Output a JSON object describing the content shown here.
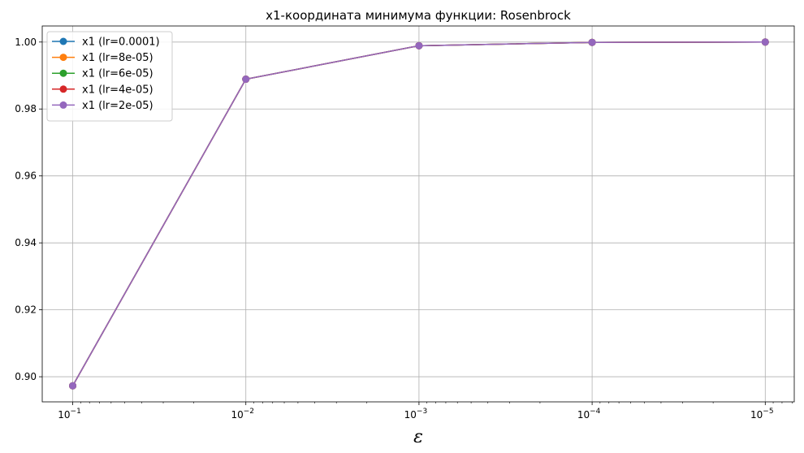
{
  "chart_data": {
    "type": "line",
    "title": "x1-координата минимума функции: Rosenbrock",
    "xlabel": "ε",
    "ylabel": "",
    "x_scale": "log",
    "x_axis_inverted": true,
    "x": [
      0.1,
      0.01,
      0.001,
      0.0001,
      1e-05
    ],
    "xlim": [
      0.15,
      6.8e-06
    ],
    "ylim": [
      0.8925,
      1.0048
    ],
    "x_ticks": [
      {
        "value": 0.1,
        "base": "10",
        "exp": "−1"
      },
      {
        "value": 0.01,
        "base": "10",
        "exp": "−2"
      },
      {
        "value": 0.001,
        "base": "10",
        "exp": "−3"
      },
      {
        "value": 0.0001,
        "base": "10",
        "exp": "−4"
      },
      {
        "value": 1e-05,
        "base": "10",
        "exp": "−5"
      }
    ],
    "y_ticks": [
      {
        "value": 0.9,
        "label": "0.90"
      },
      {
        "value": 0.92,
        "label": "0.92"
      },
      {
        "value": 0.94,
        "label": "0.94"
      },
      {
        "value": 0.96,
        "label": "0.96"
      },
      {
        "value": 0.98,
        "label": "0.98"
      },
      {
        "value": 1.0,
        "label": "1.00"
      }
    ],
    "grid": true,
    "legend_position": "top-left",
    "series": [
      {
        "name": "x1 (lr=0.0001)",
        "color": "#1f77b4",
        "values": [
          0.8973,
          0.9889,
          0.9989,
          0.9999,
          1.0
        ]
      },
      {
        "name": "x1 (lr=8e-05)",
        "color": "#ff7f0e",
        "values": [
          0.8973,
          0.9889,
          0.9989,
          0.9999,
          1.0
        ]
      },
      {
        "name": "x1 (lr=6e-05)",
        "color": "#2ca02c",
        "values": [
          0.8973,
          0.9889,
          0.9989,
          0.9999,
          1.0
        ]
      },
      {
        "name": "x1 (lr=4e-05)",
        "color": "#d62728",
        "values": [
          0.8973,
          0.9889,
          0.9989,
          0.9999,
          1.0
        ]
      },
      {
        "name": "x1 (lr=2e-05)",
        "color": "#9467bd",
        "values": [
          0.8973,
          0.9889,
          0.9989,
          0.9999,
          1.0
        ]
      }
    ]
  }
}
